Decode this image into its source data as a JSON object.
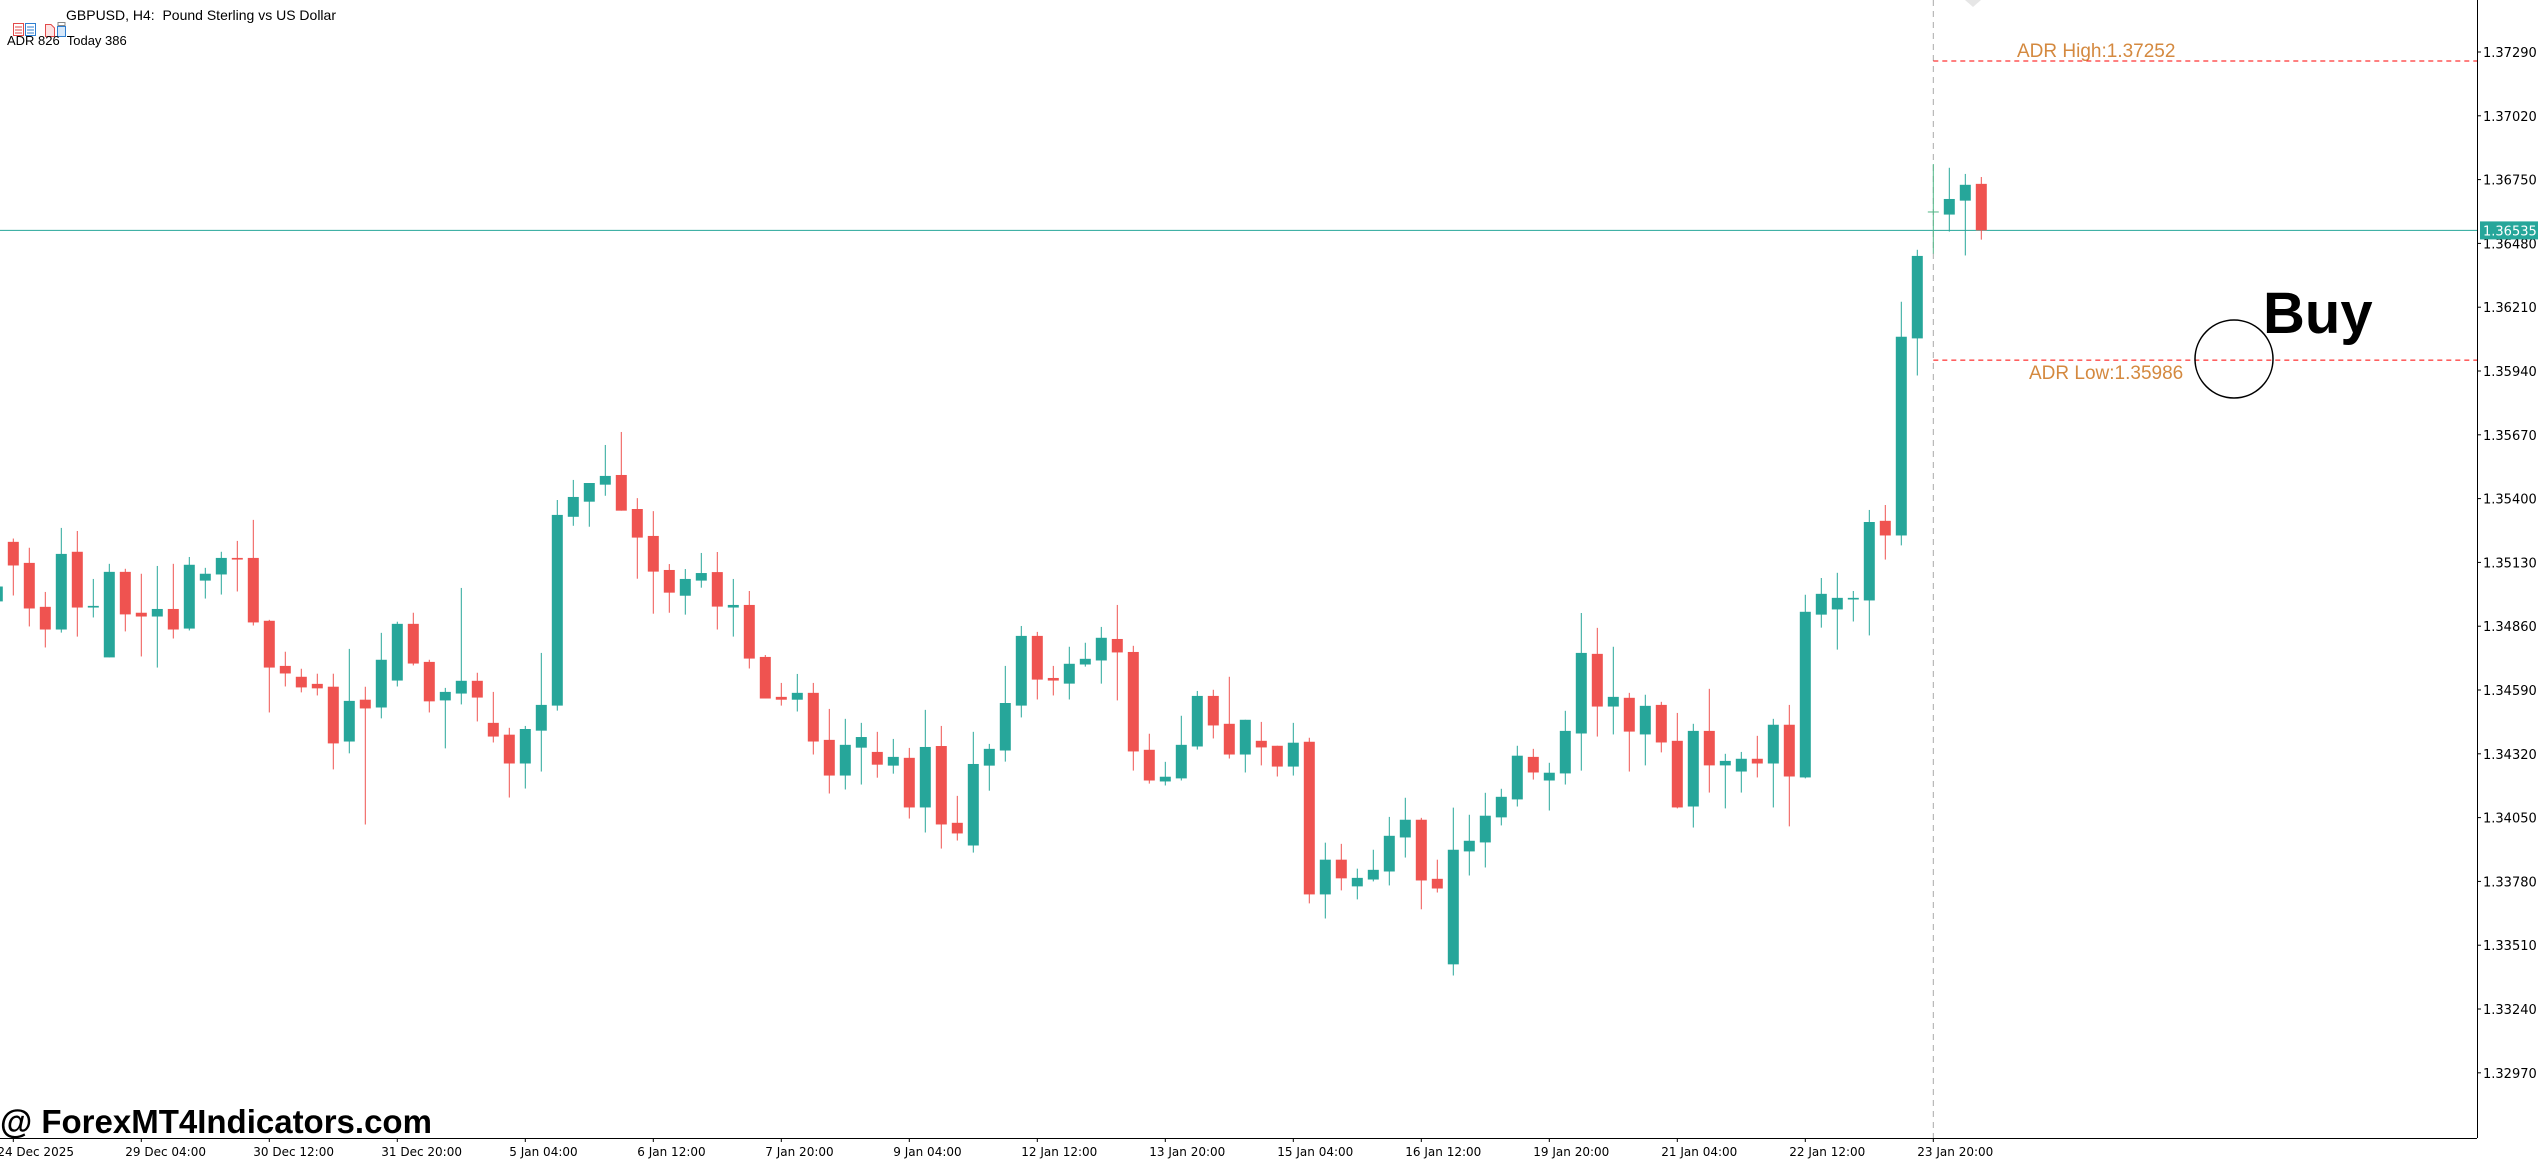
{
  "header": {
    "title": "GBPUSD, H4:  Pound Sterling vs US Dollar",
    "indicator_line": "ADR 826  Today 386",
    "icons": [
      "one-click-trading-icon",
      "market-depth-icon"
    ]
  },
  "watermark": "@ ForexMT4Indicators.com",
  "colors": {
    "bull": "#26a69a",
    "bear": "#ef5350",
    "doji": "#52b788",
    "adr_line": "#ff0000",
    "adr_label": "#d4893f",
    "current_price": "#26a69a",
    "period_separator": "#a9a9a9"
  },
  "annotations": {
    "adr_high_label": "ADR High:1.37252",
    "adr_high": 1.37252,
    "adr_low_label": "ADR Low:1.35986",
    "adr_low": 1.35986,
    "signal_label": "Buy",
    "current_price": 1.36535,
    "current_price_label": "1.36535"
  },
  "chart_data": {
    "type": "candlestick",
    "symbol": "GBPUSD",
    "timeframe": "H4",
    "ylim": [
      1.32694,
      1.3751
    ],
    "y_ticks": [
      "1.37290",
      "1.37020",
      "1.36750",
      "1.36480",
      "1.36210",
      "1.35940",
      "1.35670",
      "1.35400",
      "1.35130",
      "1.34860",
      "1.34590",
      "1.34320",
      "1.34050",
      "1.33780",
      "1.33510",
      "1.33240",
      "1.32970"
    ],
    "x_labels": [
      {
        "label": "24 Dec 2025",
        "bar": 1
      },
      {
        "label": "29 Dec 04:00",
        "bar": 9
      },
      {
        "label": "30 Dec 12:00",
        "bar": 17
      },
      {
        "label": "31 Dec 20:00",
        "bar": 25
      },
      {
        "label": "5 Jan 04:00",
        "bar": 33
      },
      {
        "label": "6 Jan 12:00",
        "bar": 41
      },
      {
        "label": "7 Jan 20:00",
        "bar": 49
      },
      {
        "label": "9 Jan 04:00",
        "bar": 57
      },
      {
        "label": "12 Jan 12:00",
        "bar": 65
      },
      {
        "label": "13 Jan 20:00",
        "bar": 73
      },
      {
        "label": "15 Jan 04:00",
        "bar": 81
      },
      {
        "label": "16 Jan 12:00",
        "bar": 89
      },
      {
        "label": "19 Jan 20:00",
        "bar": 97
      },
      {
        "label": "21 Jan 04:00",
        "bar": 105
      },
      {
        "label": "22 Jan 12:00",
        "bar": 113
      },
      {
        "label": "23 Jan 20:00",
        "bar": 121
      }
    ],
    "ohlc": [
      [
        1.34965,
        1.35042,
        1.34943,
        1.35028
      ],
      [
        1.35217,
        1.35231,
        1.3499,
        1.35117
      ],
      [
        1.35128,
        1.35192,
        1.34859,
        1.34935
      ],
      [
        1.34942,
        1.35005,
        1.3477,
        1.34846
      ],
      [
        1.34846,
        1.35276,
        1.34833,
        1.35166
      ],
      [
        1.35175,
        1.35263,
        1.34816,
        1.34939
      ],
      [
        1.34939,
        1.3506,
        1.34897,
        1.34946
      ],
      [
        1.34728,
        1.35124,
        1.34728,
        1.3509
      ],
      [
        1.3509,
        1.35103,
        1.34838,
        1.3491
      ],
      [
        1.34917,
        1.35082,
        1.34732,
        1.34901
      ],
      [
        1.34901,
        1.35115,
        1.34685,
        1.34933
      ],
      [
        1.34933,
        1.35124,
        1.34808,
        1.34846
      ],
      [
        1.3485,
        1.35153,
        1.34842,
        1.3512
      ],
      [
        1.35053,
        1.35107,
        1.34977,
        1.35082
      ],
      [
        1.35079,
        1.35175,
        1.34994,
        1.35149
      ],
      [
        1.35149,
        1.35221,
        1.35007,
        1.35142
      ],
      [
        1.35149,
        1.3531,
        1.34863,
        1.34876
      ],
      [
        1.34883,
        1.34887,
        1.34495,
        1.34685
      ],
      [
        1.34692,
        1.34752,
        1.34605,
        1.3466
      ],
      [
        1.34646,
        1.3468,
        1.3458,
        1.34601
      ],
      [
        1.34616,
        1.34659,
        1.34567,
        1.34597
      ],
      [
        1.34604,
        1.34659,
        1.34254,
        1.34364
      ],
      [
        1.34372,
        1.34764,
        1.34322,
        1.34544
      ],
      [
        1.34549,
        1.34604,
        1.34021,
        1.34512
      ],
      [
        1.34516,
        1.34832,
        1.3447,
        1.34718
      ],
      [
        1.3463,
        1.34879,
        1.34605,
        1.3487
      ],
      [
        1.3487,
        1.34917,
        1.34694,
        1.34702
      ],
      [
        1.34709,
        1.34718,
        1.34495,
        1.34542
      ],
      [
        1.34546,
        1.34599,
        1.34343,
        1.34582
      ],
      [
        1.34575,
        1.35022,
        1.34529,
        1.34629
      ],
      [
        1.34629,
        1.34663,
        1.34457,
        1.34558
      ],
      [
        1.34451,
        1.34582,
        1.34368,
        1.34393
      ],
      [
        1.34401,
        1.3443,
        1.34135,
        1.34279
      ],
      [
        1.34279,
        1.34438,
        1.34173,
        1.34425
      ],
      [
        1.34418,
        1.34747,
        1.34245,
        1.34527
      ],
      [
        1.34524,
        1.35394,
        1.34503,
        1.35331
      ],
      [
        1.35323,
        1.35479,
        1.35285,
        1.35407
      ],
      [
        1.35387,
        1.35466,
        1.35281,
        1.35466
      ],
      [
        1.35459,
        1.35627,
        1.35412,
        1.35496
      ],
      [
        1.355,
        1.35682,
        1.35349,
        1.35349
      ],
      [
        1.35356,
        1.35402,
        1.35061,
        1.35235
      ],
      [
        1.35242,
        1.35347,
        1.34913,
        1.35091
      ],
      [
        1.35098,
        1.35123,
        1.34917,
        1.35002
      ],
      [
        1.34989,
        1.35102,
        1.34909,
        1.3506
      ],
      [
        1.35053,
        1.3517,
        1.35023,
        1.35085
      ],
      [
        1.35089,
        1.35174,
        1.34846,
        1.34943
      ],
      [
        1.34939,
        1.3506,
        1.34816,
        1.3495
      ],
      [
        1.3495,
        1.35009,
        1.34681,
        1.34723
      ],
      [
        1.3473,
        1.34738,
        1.34554,
        1.34554
      ],
      [
        1.34561,
        1.3462,
        1.34524,
        1.34549
      ],
      [
        1.34549,
        1.34658,
        1.34499,
        1.34578
      ],
      [
        1.34578,
        1.3462,
        1.34317,
        1.34372
      ],
      [
        1.34379,
        1.3451,
        1.34152,
        1.34228
      ],
      [
        1.34228,
        1.34468,
        1.34169,
        1.34358
      ],
      [
        1.34346,
        1.34451,
        1.3419,
        1.34391
      ],
      [
        1.34328,
        1.34413,
        1.34219,
        1.34274
      ],
      [
        1.3427,
        1.34383,
        1.34236,
        1.34307
      ],
      [
        1.34303,
        1.34345,
        1.34046,
        1.34093
      ],
      [
        1.34093,
        1.34506,
        1.33987,
        1.34349
      ],
      [
        1.34353,
        1.34438,
        1.33919,
        1.34021
      ],
      [
        1.34028,
        1.34142,
        1.33953,
        1.33983
      ],
      [
        1.33932,
        1.34413,
        1.33902,
        1.34277
      ],
      [
        1.3427,
        1.34362,
        1.34164,
        1.34341
      ],
      [
        1.34334,
        1.34692,
        1.34287,
        1.34535
      ],
      [
        1.34524,
        1.34861,
        1.34474,
        1.34819
      ],
      [
        1.34819,
        1.34836,
        1.3455,
        1.34634
      ],
      [
        1.34641,
        1.34692,
        1.34567,
        1.3463
      ],
      [
        1.34617,
        1.34773,
        1.3455,
        1.34701
      ],
      [
        1.34698,
        1.3479,
        1.34689,
        1.34722
      ],
      [
        1.34715,
        1.34857,
        1.34617,
        1.34811
      ],
      [
        1.34806,
        1.3495,
        1.34546,
        1.34749
      ],
      [
        1.34751,
        1.34777,
        1.34249,
        1.3433
      ],
      [
        1.34337,
        1.34405,
        1.34194,
        1.34207
      ],
      [
        1.34203,
        1.34286,
        1.34186,
        1.34223
      ],
      [
        1.34216,
        1.34481,
        1.34207,
        1.34358
      ],
      [
        1.34351,
        1.34586,
        1.34338,
        1.34565
      ],
      [
        1.34565,
        1.34591,
        1.34385,
        1.3444
      ],
      [
        1.34447,
        1.34646,
        1.343,
        1.34317
      ],
      [
        1.34317,
        1.34464,
        1.34241,
        1.34464
      ],
      [
        1.34375,
        1.34455,
        1.34271,
        1.34347
      ],
      [
        1.34354,
        1.34354,
        1.34224,
        1.34266
      ],
      [
        1.34266,
        1.34451,
        1.34228,
        1.34367
      ],
      [
        1.34371,
        1.34388,
        1.33687,
        1.33725
      ],
      [
        1.33725,
        1.33944,
        1.33623,
        1.33872
      ],
      [
        1.33872,
        1.33939,
        1.33742,
        1.33793
      ],
      [
        1.33759,
        1.33834,
        1.33704,
        1.33795
      ],
      [
        1.33788,
        1.33914,
        1.3378,
        1.33829
      ],
      [
        1.33822,
        1.34053,
        1.33763,
        1.33973
      ],
      [
        1.33966,
        1.34134,
        1.33881,
        1.34041
      ],
      [
        1.34041,
        1.34049,
        1.33662,
        1.33784
      ],
      [
        1.33791,
        1.33872,
        1.33733,
        1.3375
      ],
      [
        1.33429,
        1.34092,
        1.33382,
        1.33914
      ],
      [
        1.33907,
        1.34062,
        1.33805,
        1.33952
      ],
      [
        1.33945,
        1.34155,
        1.33839,
        1.34058
      ],
      [
        1.34051,
        1.34172,
        1.34017,
        1.34138
      ],
      [
        1.34127,
        1.34354,
        1.34097,
        1.34312
      ],
      [
        1.34307,
        1.34341,
        1.34211,
        1.34241
      ],
      [
        1.34207,
        1.34282,
        1.3408,
        1.3424
      ],
      [
        1.34237,
        1.34502,
        1.3419,
        1.34417
      ],
      [
        1.34406,
        1.34916,
        1.34249,
        1.34747
      ],
      [
        1.34743,
        1.34853,
        1.34393,
        1.3452
      ],
      [
        1.3452,
        1.34773,
        1.34402,
        1.34561
      ],
      [
        1.34557,
        1.34578,
        1.34245,
        1.34414
      ],
      [
        1.34402,
        1.3457,
        1.34271,
        1.34523
      ],
      [
        1.34527,
        1.3454,
        1.34326,
        1.34368
      ],
      [
        1.34375,
        1.34493,
        1.34089,
        1.34093
      ],
      [
        1.34097,
        1.34447,
        1.34008,
        1.34417
      ],
      [
        1.34417,
        1.34595,
        1.34156,
        1.34271
      ],
      [
        1.34271,
        1.3432,
        1.34089,
        1.3429
      ],
      [
        1.34245,
        1.34328,
        1.34156,
        1.34299
      ],
      [
        1.34299,
        1.34396,
        1.3422,
        1.34279
      ],
      [
        1.34279,
        1.34468,
        1.34093,
        1.34443
      ],
      [
        1.34443,
        1.34527,
        1.34013,
        1.34224
      ],
      [
        1.3422,
        1.34993,
        1.34216,
        1.34921
      ],
      [
        1.34909,
        1.35064,
        1.34854,
        1.34997
      ],
      [
        1.34931,
        1.35086,
        1.34761,
        1.3498
      ],
      [
        1.34973,
        1.35009,
        1.3488,
        1.3498
      ],
      [
        1.34969,
        1.35352,
        1.34821,
        1.35301
      ],
      [
        1.35306,
        1.35373,
        1.35142,
        1.35244
      ],
      [
        1.35244,
        1.36233,
        1.35202,
        1.36085
      ],
      [
        1.36078,
        1.36453,
        1.35921,
        1.36427
      ],
      [
        1.36613,
        1.36816,
        1.36437,
        1.36613
      ],
      [
        1.36602,
        1.368,
        1.3653,
        1.36668
      ],
      [
        1.36661,
        1.36774,
        1.36429,
        1.36728
      ],
      [
        1.36732,
        1.36761,
        1.36496,
        1.36535
      ]
    ]
  }
}
